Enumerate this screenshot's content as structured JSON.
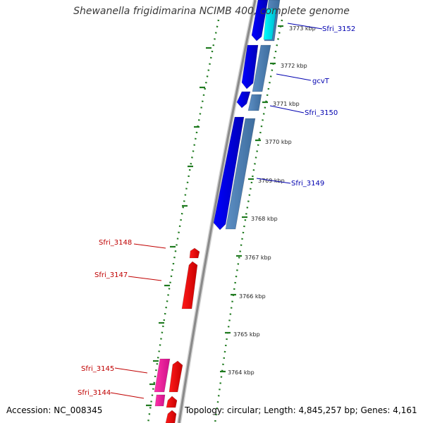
{
  "title": "Shewanella frigidimarina NCIMB 400, complete genome",
  "footer": {
    "accession": "Accession: NC_008345",
    "stats": "Topology: circular; Length: 4,845,257 bp; Genes: 4,161"
  },
  "colors": {
    "backbone": "#8a8a8a",
    "tick_dots": "#1f7a1f",
    "forward_gene": "#0000ee",
    "forward_gene_alt": "#4a7fb5",
    "forward_gene_cyan": "#00e5ff",
    "reverse_gene": "#ee0000",
    "reverse_gene_pink": "#ff1493",
    "forward_label": "#0000b0",
    "reverse_label": "#c00000"
  },
  "scale": {
    "unit": "kbp",
    "ticks": [
      {
        "label": "3773 kbp",
        "kbp": 3773
      },
      {
        "label": "3772 kbp",
        "kbp": 3772
      },
      {
        "label": "3771 kbp",
        "kbp": 3771
      },
      {
        "label": "3770 kbp",
        "kbp": 3770
      },
      {
        "label": "3769 kbp",
        "kbp": 3769
      },
      {
        "label": "3768 kbp",
        "kbp": 3768
      },
      {
        "label": "3767 kbp",
        "kbp": 3767
      },
      {
        "label": "3766 kbp",
        "kbp": 3766
      },
      {
        "label": "3765 kbp",
        "kbp": 3765
      },
      {
        "label": "3764 kbp",
        "kbp": 3764
      }
    ]
  },
  "genes": {
    "forward": [
      {
        "label": "Sfri_3152"
      },
      {
        "label": "gcvT"
      },
      {
        "label": "Sfri_3150"
      },
      {
        "label": "Sfri_3149"
      }
    ],
    "reverse": [
      {
        "label": "Sfri_3148"
      },
      {
        "label": "Sfri_3147"
      },
      {
        "label": "Sfri_3145"
      },
      {
        "label": "Sfri_3144"
      }
    ]
  }
}
